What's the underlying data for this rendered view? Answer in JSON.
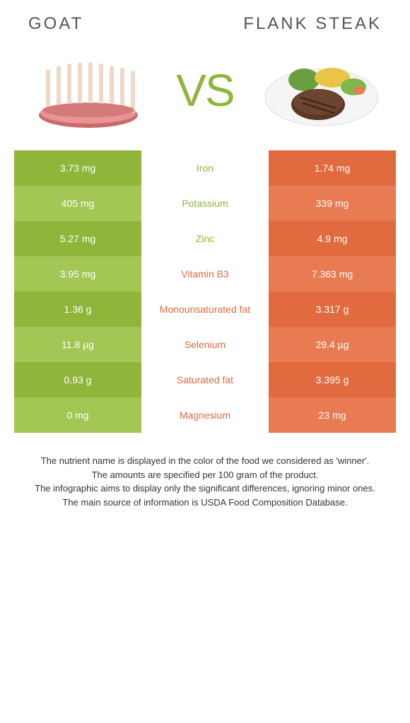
{
  "header": {
    "left_title": "Goat",
    "right_title": "Flank steak",
    "vs": "VS"
  },
  "colors": {
    "green_dark": "#8fb53a",
    "green_light": "#a3c654",
    "orange_dark": "#e16a3f",
    "orange_light": "#e87b52",
    "nutrient_green": "#8fb53a",
    "nutrient_orange": "#e16a3f"
  },
  "rows": [
    {
      "left": "3.73 mg",
      "mid": "Iron",
      "right": "1.74 mg",
      "winner": "left"
    },
    {
      "left": "405 mg",
      "mid": "Potassium",
      "right": "339 mg",
      "winner": "left"
    },
    {
      "left": "5.27 mg",
      "mid": "Zinc",
      "right": "4.9 mg",
      "winner": "left"
    },
    {
      "left": "3.95 mg",
      "mid": "Vitamin B3",
      "right": "7.363 mg",
      "winner": "right"
    },
    {
      "left": "1.36 g",
      "mid": "Monounsaturated fat",
      "right": "3.317 g",
      "winner": "right"
    },
    {
      "left": "11.8 µg",
      "mid": "Selenium",
      "right": "29.4 µg",
      "winner": "right"
    },
    {
      "left": "0.93 g",
      "mid": "Saturated fat",
      "right": "3.395 g",
      "winner": "right"
    },
    {
      "left": "0 mg",
      "mid": "Magnesium",
      "right": "23 mg",
      "winner": "right"
    }
  ],
  "footer": {
    "line1": "The nutrient name is displayed in the color of the food we considered as 'winner'.",
    "line2": "The amounts are specified per 100 gram of the product.",
    "line3": "The infographic aims to display only the significant differences, ignoring minor ones.",
    "line4": "The main source of information is USDA Food Composition Database."
  }
}
